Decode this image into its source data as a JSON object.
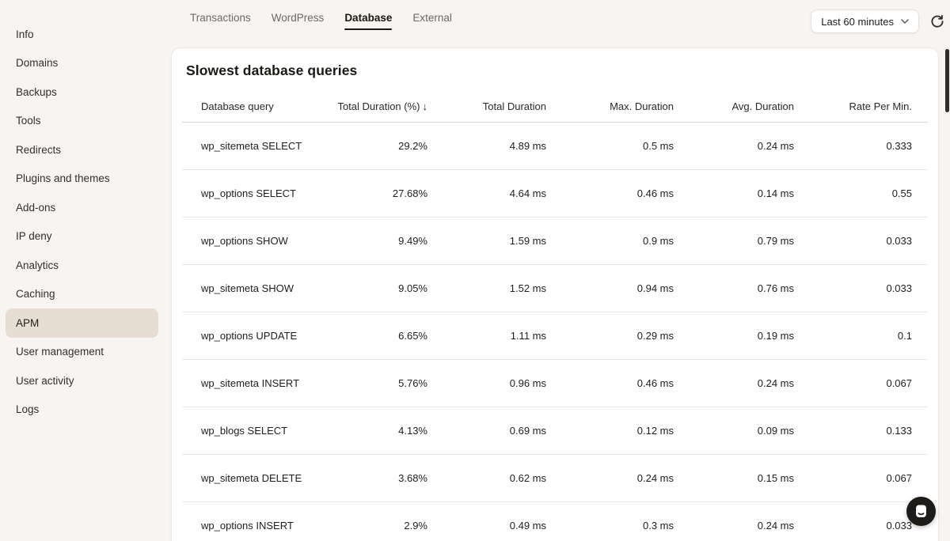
{
  "colors": {
    "page_background": "#f7f4f1",
    "sidebar_active_background": "#e6ded2",
    "card_background": "#ffffff",
    "tab_active_underline": "#1c1913",
    "primary_text": "#201e1b",
    "muted_text": "#6d6a64"
  },
  "sidebar": {
    "items": [
      {
        "label": "Info",
        "active": false
      },
      {
        "label": "Domains",
        "active": false
      },
      {
        "label": "Backups",
        "active": false
      },
      {
        "label": "Tools",
        "active": false
      },
      {
        "label": "Redirects",
        "active": false
      },
      {
        "label": "Plugins and themes",
        "active": false
      },
      {
        "label": "Add-ons",
        "active": false
      },
      {
        "label": "IP deny",
        "active": false
      },
      {
        "label": "Analytics",
        "active": false
      },
      {
        "label": "Caching",
        "active": false
      },
      {
        "label": "APM",
        "active": true
      },
      {
        "label": "User management",
        "active": false
      },
      {
        "label": "User activity",
        "active": false
      },
      {
        "label": "Logs",
        "active": false
      }
    ]
  },
  "topbar": {
    "tabs": [
      {
        "label": "Transactions",
        "active": false
      },
      {
        "label": "WordPress",
        "active": false
      },
      {
        "label": "Database",
        "active": true
      },
      {
        "label": "External",
        "active": false
      }
    ],
    "time_range": {
      "label": "Last 60 minutes",
      "chevron_icon": "chevron-down"
    },
    "refresh_icon": "refresh"
  },
  "card": {
    "title": "Slowest database queries",
    "table": {
      "columns": [
        "Database query",
        "Total Duration (%)",
        "Total Duration",
        "Max. Duration",
        "Avg. Duration",
        "Rate Per Min."
      ],
      "sort": {
        "column": "Total Duration (%)",
        "direction": "desc",
        "arrow": "↓"
      },
      "rows": [
        [
          "wp_sitemeta SELECT",
          "29.2%",
          "4.89 ms",
          "0.5 ms",
          "0.24 ms",
          "0.333"
        ],
        [
          "wp_options SELECT",
          "27.68%",
          "4.64 ms",
          "0.46 ms",
          "0.14 ms",
          "0.55"
        ],
        [
          "wp_options SHOW",
          "9.49%",
          "1.59 ms",
          "0.9 ms",
          "0.79 ms",
          "0.033"
        ],
        [
          "wp_sitemeta SHOW",
          "9.05%",
          "1.52 ms",
          "0.94 ms",
          "0.76 ms",
          "0.033"
        ],
        [
          "wp_options UPDATE",
          "6.65%",
          "1.11 ms",
          "0.29 ms",
          "0.19 ms",
          "0.1"
        ],
        [
          "wp_sitemeta INSERT",
          "5.76%",
          "0.96 ms",
          "0.46 ms",
          "0.24 ms",
          "0.067"
        ],
        [
          "wp_blogs SELECT",
          "4.13%",
          "0.69 ms",
          "0.12 ms",
          "0.09 ms",
          "0.133"
        ],
        [
          "wp_sitemeta DELETE",
          "3.68%",
          "0.62 ms",
          "0.24 ms",
          "0.15 ms",
          "0.067"
        ],
        [
          "wp_options INSERT",
          "2.9%",
          "0.49 ms",
          "0.3 ms",
          "0.24 ms",
          "0.033"
        ]
      ]
    }
  },
  "floating": {
    "chat_icon": "chat-bubble",
    "scrollbar": "vertical-scrollbar-thumb"
  }
}
